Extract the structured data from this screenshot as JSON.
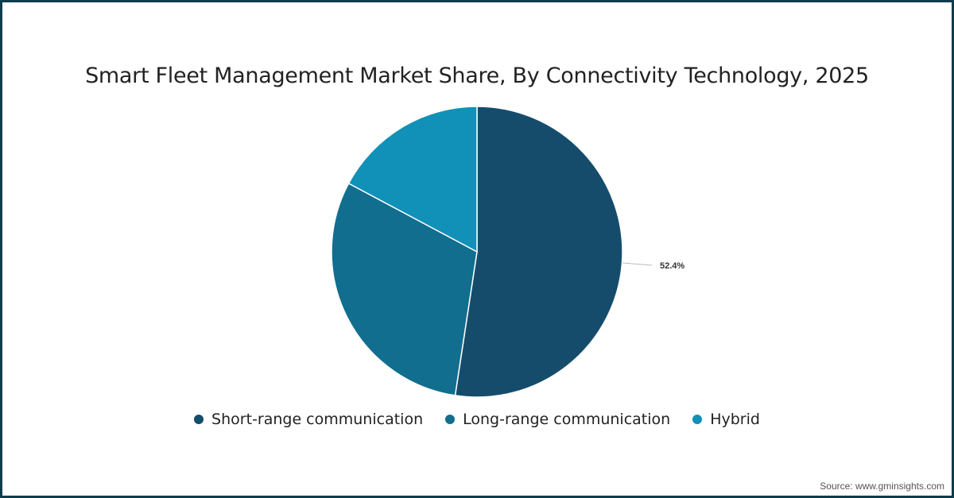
{
  "title": "Smart Fleet Management Market Share, By Connectivity Technology, 2025",
  "source": "Source: www.gminsights.com",
  "legend": [
    {
      "label": "Short-range communication",
      "color": "#154c6b"
    },
    {
      "label": "Long-range communication",
      "color": "#116e8e"
    },
    {
      "label": "Hybrid",
      "color": "#1190b8"
    }
  ],
  "data_label": "52.4%",
  "chart_data": {
    "type": "pie",
    "title": "Smart Fleet Management Market Share, By Connectivity Technology, 2025",
    "categories": [
      "Short-range communication",
      "Long-range communication",
      "Hybrid"
    ],
    "values": [
      52.4,
      30.4,
      17.2
    ],
    "colors": [
      "#154c6b",
      "#116e8e",
      "#1190b8"
    ],
    "annotations": [
      "52.4%"
    ],
    "legend_position": "bottom"
  }
}
